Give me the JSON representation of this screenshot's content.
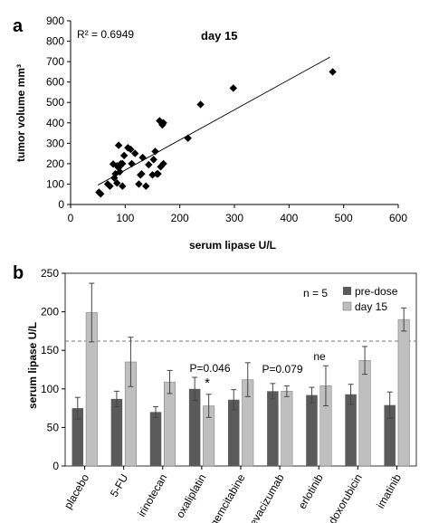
{
  "panels": {
    "a": "a",
    "b": "b"
  },
  "chart_data": [
    {
      "type": "scatter",
      "annotations": {
        "r2": "R² = 0.6949",
        "title": "day 15"
      },
      "xlabel": "serum lipase U/L",
      "ylabel": "tumor volume mm³",
      "xlim": [
        0,
        600
      ],
      "ylim": [
        0,
        900
      ],
      "xticks": [
        "0",
        "100",
        "200",
        "300",
        "400",
        "500",
        "600"
      ],
      "yticks": [
        "0",
        "100",
        "200",
        "300",
        "400",
        "500",
        "600",
        "700",
        "800",
        "900"
      ],
      "points": [
        {
          "x": 52,
          "y": 60
        },
        {
          "x": 55,
          "y": 52
        },
        {
          "x": 68,
          "y": 100
        },
        {
          "x": 72,
          "y": 90
        },
        {
          "x": 78,
          "y": 198
        },
        {
          "x": 80,
          "y": 130
        },
        {
          "x": 82,
          "y": 150
        },
        {
          "x": 85,
          "y": 190
        },
        {
          "x": 85,
          "y": 105
        },
        {
          "x": 88,
          "y": 180
        },
        {
          "x": 88,
          "y": 290
        },
        {
          "x": 90,
          "y": 160
        },
        {
          "x": 92,
          "y": 200
        },
        {
          "x": 95,
          "y": 90
        },
        {
          "x": 95,
          "y": 200
        },
        {
          "x": 98,
          "y": 240
        },
        {
          "x": 105,
          "y": 278
        },
        {
          "x": 110,
          "y": 270
        },
        {
          "x": 112,
          "y": 200
        },
        {
          "x": 118,
          "y": 250
        },
        {
          "x": 125,
          "y": 100
        },
        {
          "x": 128,
          "y": 145
        },
        {
          "x": 130,
          "y": 150
        },
        {
          "x": 132,
          "y": 230
        },
        {
          "x": 138,
          "y": 90
        },
        {
          "x": 143,
          "y": 195
        },
        {
          "x": 150,
          "y": 145
        },
        {
          "x": 152,
          "y": 220
        },
        {
          "x": 155,
          "y": 260
        },
        {
          "x": 158,
          "y": 150
        },
        {
          "x": 160,
          "y": 150
        },
        {
          "x": 163,
          "y": 410
        },
        {
          "x": 165,
          "y": 185
        },
        {
          "x": 168,
          "y": 390
        },
        {
          "x": 170,
          "y": 400
        },
        {
          "x": 170,
          "y": 200
        },
        {
          "x": 215,
          "y": 325
        },
        {
          "x": 238,
          "y": 490
        },
        {
          "x": 298,
          "y": 570
        },
        {
          "x": 480,
          "y": 650
        }
      ],
      "trendline": {
        "x": [
          50,
          475
        ],
        "y": [
          95,
          722
        ]
      }
    },
    {
      "type": "bar",
      "xlabel": "",
      "ylabel": "serum lipase U/L",
      "ylim": [
        0,
        250
      ],
      "yticks": [
        "0",
        "50",
        "100",
        "150",
        "200",
        "250"
      ],
      "categories": [
        "placebo",
        "5-FU",
        "irinotecan",
        "oxaliplatin",
        "gemcitabine",
        "bevacizumab",
        "erlotinib",
        "doxorubicin",
        "imatinib"
      ],
      "series": [
        {
          "name": "pre-dose",
          "color": "#5a5a5a",
          "values": [
            75,
            87,
            70,
            100,
            86,
            97,
            92,
            93,
            79
          ],
          "errors": [
            14,
            10,
            7,
            15,
            13,
            10,
            10,
            13,
            17
          ]
        },
        {
          "name": "day 15",
          "color": "#bfbfbf",
          "values": [
            199,
            135,
            109,
            78,
            112,
            97,
            104,
            137,
            190
          ],
          "errors": [
            38,
            32,
            15,
            15,
            22,
            7,
            26,
            18,
            15
          ]
        }
      ],
      "reference_line": 162,
      "annotations": {
        "n": "n = 5",
        "oxaliplatin_p": "P=0.046",
        "oxaliplatin_star": "*",
        "bevacizumab_p": "P=0.079",
        "erlotinib_ne": "ne"
      }
    }
  ]
}
